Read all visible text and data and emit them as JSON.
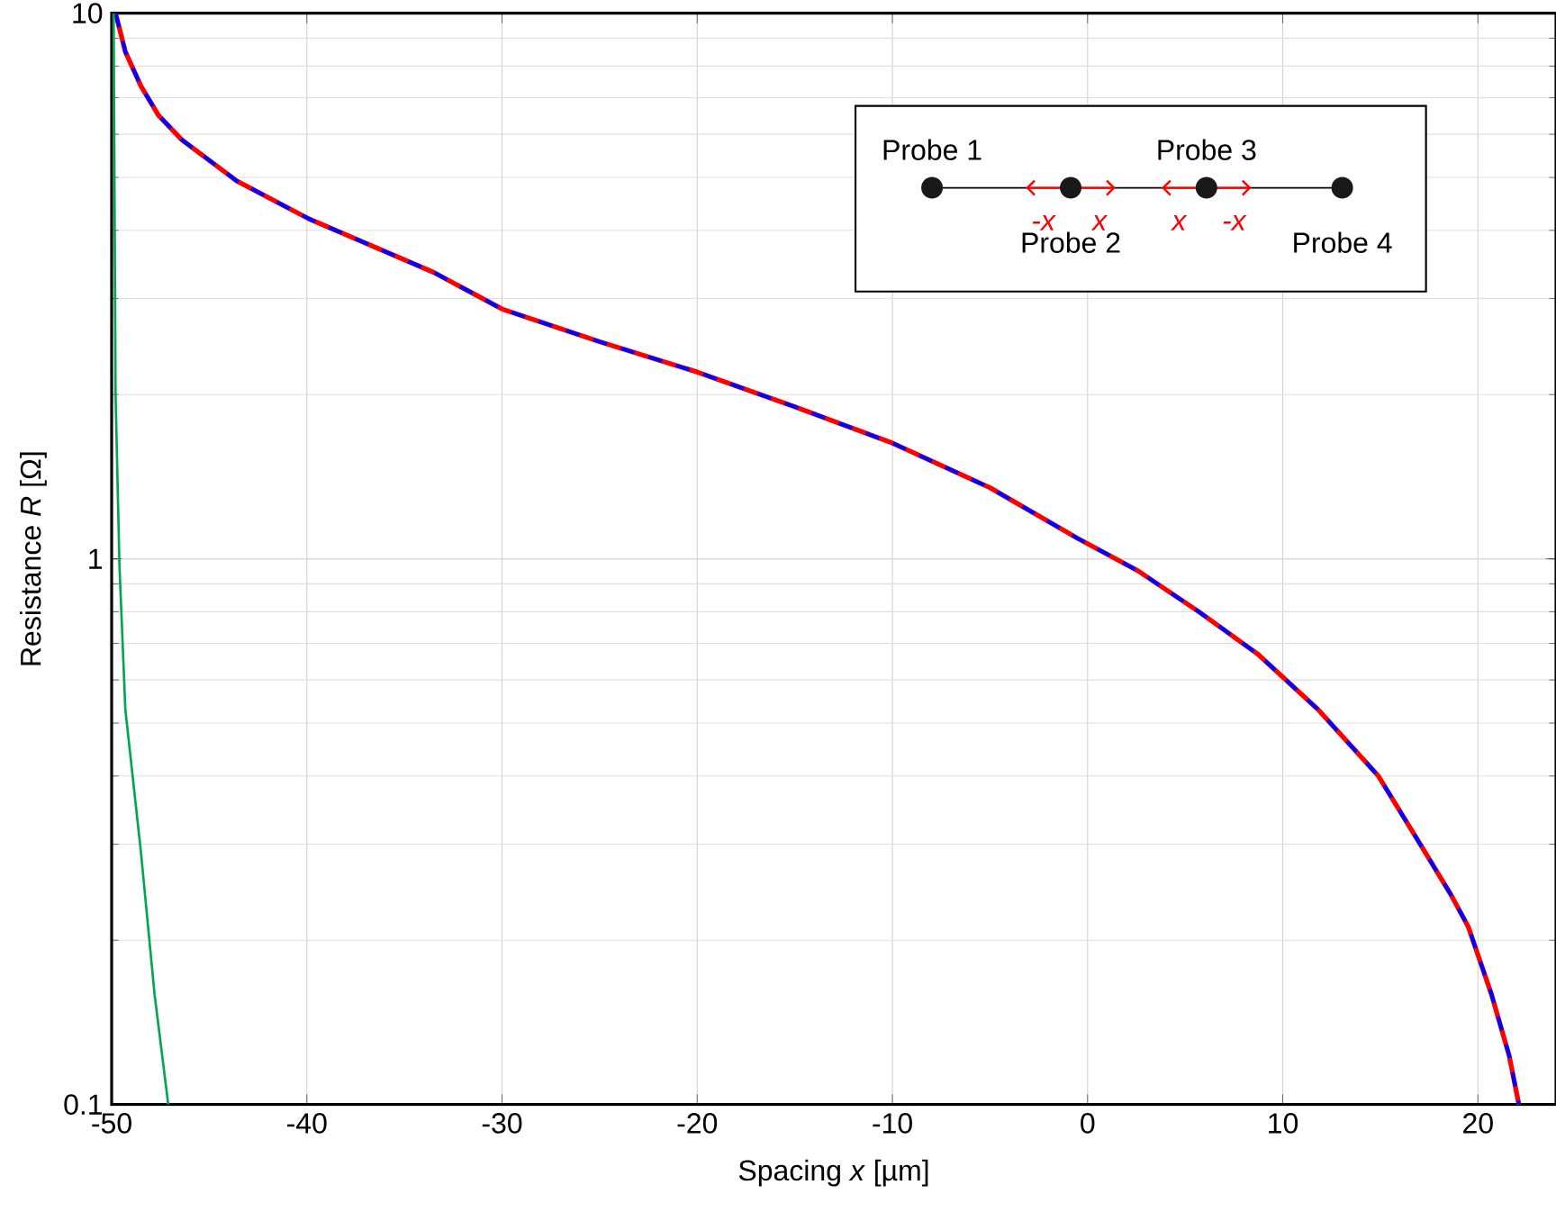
{
  "chart_data": {
    "type": "line",
    "xlabel": "Spacing *x* [µm]",
    "ylabel": "Resistance *R* [Ω]",
    "log": "y",
    "grid": true,
    "xlim": [
      -50,
      24
    ],
    "ylim": [
      0.1,
      10
    ],
    "xticks": [
      -50,
      -40,
      -30,
      -20,
      -10,
      0,
      10,
      20
    ],
    "yticks": [
      0.1,
      1,
      10
    ],
    "series": [
      {
        "color": "#ff0000",
        "line_style": "solid",
        "x": [
          -49.8,
          -49.3,
          -48.5,
          -47.6,
          -46.4,
          -43.6,
          -39.9,
          -33.5,
          -30,
          -25,
          -20,
          -15,
          -10,
          -5,
          -0.5,
          2.6,
          5.7,
          8.7,
          11.8,
          14.9,
          16.8,
          18.6,
          19.5,
          20.7,
          21.6,
          22.1
        ],
        "values": [
          10,
          8.5,
          7.35,
          6.5,
          5.86,
          4.93,
          4.2,
          3.35,
          2.87,
          2.5,
          2.2,
          1.9,
          1.63,
          1.35,
          1.09,
          0.95,
          0.8,
          0.67,
          0.53,
          0.4,
          0.31,
          0.243,
          0.212,
          0.159,
          0.123,
          0.1
        ]
      },
      {
        "color": "#0000ff",
        "line_style": "dashed",
        "x": [
          -49.8,
          -49.3,
          -48.5,
          -47.6,
          -46.4,
          -43.6,
          -39.9,
          -33.5,
          -30,
          -25,
          -20,
          -15,
          -10,
          -5,
          -0.5,
          2.6,
          5.7,
          8.7,
          11.8,
          14.9,
          16.8,
          18.6,
          19.5,
          20.7,
          21.6,
          22.1
        ],
        "values": [
          10,
          8.5,
          7.35,
          6.5,
          5.86,
          4.93,
          4.2,
          3.35,
          2.87,
          2.5,
          2.2,
          1.9,
          1.63,
          1.35,
          1.09,
          0.95,
          0.8,
          0.67,
          0.53,
          0.4,
          0.31,
          0.243,
          0.212,
          0.159,
          0.123,
          0.1
        ]
      },
      {
        "color": "#00a651",
        "line_style": "solid",
        "x": [
          -49.9,
          -49.8,
          -49.6,
          -49.3,
          -48.5,
          -47.8,
          -47.1
        ],
        "values": [
          10,
          2.0,
          0.97,
          0.53,
          0.29,
          0.159,
          0.1
        ]
      }
    ],
    "annotations": [
      "Probe 1",
      "Probe 2",
      "Probe 3",
      "Probe 4",
      "-x",
      "x",
      "x",
      "-x"
    ]
  }
}
